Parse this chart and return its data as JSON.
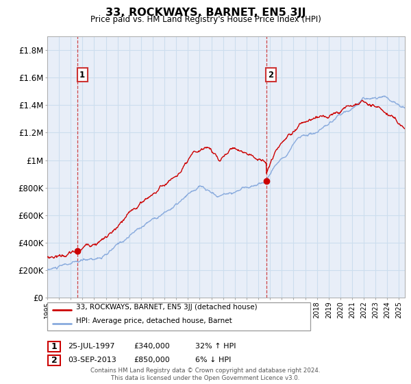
{
  "title": "33, ROCKWAYS, BARNET, EN5 3JJ",
  "subtitle": "Price paid vs. HM Land Registry's House Price Index (HPI)",
  "legend_label_red": "33, ROCKWAYS, BARNET, EN5 3JJ (detached house)",
  "legend_label_blue": "HPI: Average price, detached house, Barnet",
  "annotation1_date": "25-JUL-1997",
  "annotation1_price": "£340,000",
  "annotation1_hpi": "32% ↑ HPI",
  "annotation2_date": "03-SEP-2013",
  "annotation2_price": "£850,000",
  "annotation2_hpi": "6% ↓ HPI",
  "footer": "Contains HM Land Registry data © Crown copyright and database right 2024.\nThis data is licensed under the Open Government Licence v3.0.",
  "ylim": [
    0,
    1900000
  ],
  "yticks": [
    0,
    200000,
    400000,
    600000,
    800000,
    1000000,
    1200000,
    1400000,
    1600000,
    1800000
  ],
  "ytick_labels": [
    "£0",
    "£200K",
    "£400K",
    "£600K",
    "£800K",
    "£1M",
    "£1.2M",
    "£1.4M",
    "£1.6M",
    "£1.8M"
  ],
  "color_red": "#cc0000",
  "color_blue": "#88aadd",
  "color_grid": "#ccddee",
  "color_vline": "#cc3333",
  "bg_color": "#e8eef8",
  "sale1_x": 1997.57,
  "sale1_y": 340000,
  "sale2_x": 2013.67,
  "sale2_y": 850000,
  "xmin": 1995.0,
  "xmax": 2025.5
}
